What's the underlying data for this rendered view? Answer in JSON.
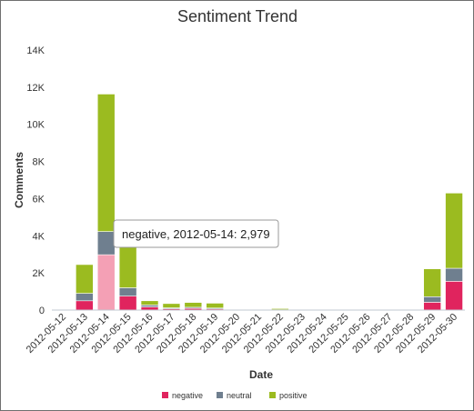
{
  "chart_data": {
    "type": "bar",
    "stacked": true,
    "title": "Sentiment Trend",
    "xlabel": "Date",
    "ylabel": "Comments",
    "ylim": [
      0,
      14000
    ],
    "y_ticks": [
      "0",
      "2K",
      "4K",
      "6K",
      "8K",
      "10K",
      "12K",
      "14K"
    ],
    "categories": [
      "2012-05-12",
      "2012-05-13",
      "2012-05-14",
      "2012-05-15",
      "2012-05-16",
      "2012-05-17",
      "2012-05-18",
      "2012-05-19",
      "2012-05-20",
      "2012-05-21",
      "2012-05-22",
      "2012-05-23",
      "2012-05-24",
      "2012-05-25",
      "2012-05-26",
      "2012-05-27",
      "2012-05-28",
      "2012-05-29",
      "2012-05-30"
    ],
    "series": [
      {
        "name": "negative",
        "color": "#e0245e",
        "values": [
          0,
          500,
          2979,
          750,
          170,
          70,
          90,
          60,
          20,
          0,
          0,
          0,
          0,
          0,
          0,
          0,
          0,
          420,
          1550
        ]
      },
      {
        "name": "neutral",
        "color": "#6f7f8f",
        "values": [
          0,
          400,
          1250,
          450,
          100,
          50,
          60,
          50,
          15,
          0,
          20,
          0,
          0,
          0,
          0,
          0,
          0,
          300,
          700
        ]
      },
      {
        "name": "positive",
        "color": "#9bbb20",
        "values": [
          0,
          1550,
          7400,
          2400,
          230,
          230,
          260,
          260,
          15,
          0,
          60,
          0,
          0,
          0,
          0,
          0,
          0,
          1500,
          4050
        ]
      }
    ],
    "legend_position": "bottom",
    "grid": false,
    "tooltip": {
      "text": "negative, 2012-05-14: 2,979",
      "series": "negative",
      "category": "2012-05-14",
      "highlight_color": "#f4a0b5"
    }
  }
}
